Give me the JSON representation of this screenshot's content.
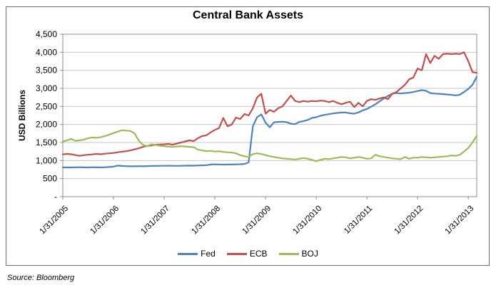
{
  "source_note": "Source: Bloomberg",
  "chart_data": {
    "type": "line",
    "title": "Central Bank Assets",
    "ylabel": "USD Billions",
    "ylim": [
      0,
      4500
    ],
    "ytick_step": 500,
    "yticklabels": [
      "-",
      "500",
      "1,000",
      "1,500",
      "2,000",
      "2,500",
      "3,000",
      "3,500",
      "4,000",
      "4,500"
    ],
    "xticklabels": [
      "1/31/2005",
      "1/31/2006",
      "1/31/2007",
      "1/31/2008",
      "1/31/2009",
      "1/31/2010",
      "1/31/2011",
      "1/31/2012",
      "1/31/2013"
    ],
    "x_frequency": "monthly",
    "x_start": "1/31/2005",
    "x_end": "3/31/2013",
    "grid": "horizontal",
    "legend_position": "bottom-center",
    "series": [
      {
        "name": "Fed",
        "color": "#4F81BD",
        "values": [
          810,
          812,
          810,
          813,
          815,
          812,
          810,
          815,
          812,
          810,
          815,
          822,
          832,
          860,
          850,
          845,
          840,
          843,
          845,
          841,
          846,
          850,
          852,
          855,
          855,
          857,
          854,
          852,
          855,
          858,
          860,
          858,
          864,
          868,
          872,
          891,
          896,
          892,
          889,
          893,
          891,
          896,
          899,
          905,
          950,
          1950,
          2200,
          2280,
          2050,
          1920,
          2060,
          2070,
          2075,
          2065,
          2020,
          2010,
          2070,
          2095,
          2125,
          2180,
          2200,
          2240,
          2265,
          2285,
          2305,
          2320,
          2330,
          2330,
          2310,
          2300,
          2335,
          2390,
          2430,
          2490,
          2560,
          2640,
          2720,
          2790,
          2850,
          2870,
          2860,
          2870,
          2880,
          2900,
          2925,
          2950,
          2930,
          2870,
          2855,
          2850,
          2840,
          2830,
          2820,
          2805,
          2825,
          2900,
          2985,
          3100,
          3320
        ]
      },
      {
        "name": "ECB",
        "color": "#C0504D",
        "values": [
          1170,
          1185,
          1175,
          1150,
          1130,
          1150,
          1160,
          1170,
          1185,
          1175,
          1190,
          1200,
          1210,
          1230,
          1245,
          1260,
          1280,
          1310,
          1340,
          1380,
          1405,
          1420,
          1440,
          1445,
          1450,
          1460,
          1440,
          1470,
          1500,
          1530,
          1560,
          1540,
          1620,
          1680,
          1700,
          1780,
          1850,
          1900,
          2180,
          1950,
          2000,
          2190,
          2150,
          2290,
          2250,
          2450,
          2750,
          2850,
          2300,
          2400,
          2350,
          2450,
          2500,
          2650,
          2800,
          2650,
          2620,
          2650,
          2630,
          2650,
          2640,
          2660,
          2650,
          2620,
          2650,
          2600,
          2560,
          2600,
          2630,
          2480,
          2600,
          2500,
          2650,
          2700,
          2680,
          2720,
          2750,
          2700,
          2850,
          2900,
          3000,
          3100,
          3250,
          3300,
          3550,
          3500,
          3950,
          3700,
          3900,
          3820,
          3950,
          3960,
          3950,
          3960,
          3950,
          4000,
          3750,
          3450,
          3430
        ]
      },
      {
        "name": "BOJ",
        "color": "#9BBB59",
        "values": [
          1530,
          1560,
          1600,
          1545,
          1560,
          1580,
          1620,
          1640,
          1630,
          1650,
          1680,
          1720,
          1760,
          1800,
          1840,
          1830,
          1820,
          1750,
          1550,
          1430,
          1400,
          1450,
          1430,
          1410,
          1400,
          1390,
          1380,
          1390,
          1400,
          1390,
          1380,
          1370,
          1300,
          1280,
          1260,
          1270,
          1250,
          1260,
          1240,
          1230,
          1220,
          1200,
          1150,
          1120,
          1100,
          1180,
          1200,
          1180,
          1150,
          1120,
          1100,
          1080,
          1060,
          1050,
          1040,
          1030,
          1050,
          1070,
          1050,
          1020,
          980,
          1020,
          1050,
          1040,
          1060,
          1080,
          1100,
          1090,
          1060,
          1080,
          1100,
          1080,
          1050,
          1060,
          1160,
          1120,
          1100,
          1080,
          1060,
          1050,
          1040,
          1100,
          1050,
          1080,
          1080,
          1100,
          1090,
          1080,
          1090,
          1100,
          1110,
          1120,
          1140,
          1130,
          1160,
          1250,
          1350,
          1500,
          1690
        ]
      }
    ]
  }
}
